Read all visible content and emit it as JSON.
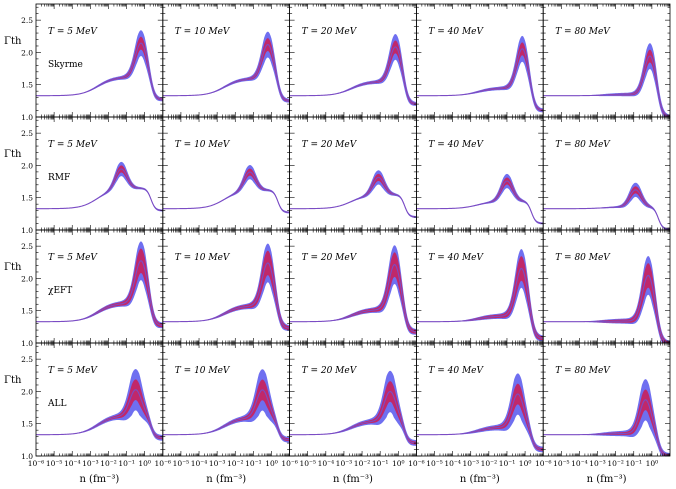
{
  "chart_data": {
    "type": "area",
    "layout": {
      "rows": 4,
      "cols": 5
    },
    "xlabel": "n (fm⁻³)",
    "ylabel": "Γth",
    "xscale": "log",
    "xlim_exp": [
      -6,
      1
    ],
    "x_tick_labels": [
      "10⁻⁶",
      "10⁻⁵",
      "10⁻⁴",
      "10⁻³",
      "10⁻²",
      "10⁻¹",
      "10⁰"
    ],
    "ylim": [
      1.0,
      2.75
    ],
    "y_ticks": [
      "1.0",
      "1.5",
      "2.0",
      "2.5"
    ],
    "temperatures": [
      "T = 5 MeV",
      "T = 10 MeV",
      "T = 20 MeV",
      "T = 40 MeV",
      "T = 80 MeV"
    ],
    "temperature_values_MeV": [
      5,
      10,
      20,
      40,
      80
    ],
    "models": [
      "Skyrme",
      "RMF",
      "χEFT",
      "ALL"
    ],
    "band_colors": {
      "outer": "#6f6ff0",
      "middle": "#c0286a",
      "median": "#7b4cc4"
    },
    "band_widths": {
      "Skyrme": [
        0.2,
        0.1
      ],
      "RMF": [
        0.11,
        0.055
      ],
      "χEFT": [
        0.3,
        0.19
      ],
      "ALL": [
        0.32,
        0.16
      ]
    },
    "series": [
      {
        "model": "Skyrme",
        "T": 5,
        "low_n": 1.33,
        "shoulder": 1.62,
        "peak": 2.12,
        "peak_log_n": -0.2
      },
      {
        "model": "Skyrme",
        "T": 10,
        "low_n": 1.33,
        "shoulder": 1.6,
        "peak": 2.1,
        "peak_log_n": -0.2
      },
      {
        "model": "Skyrme",
        "T": 20,
        "low_n": 1.33,
        "shoulder": 1.55,
        "peak": 2.07,
        "peak_log_n": -0.15
      },
      {
        "model": "Skyrme",
        "T": 40,
        "low_n": 1.33,
        "shoulder": 1.45,
        "peak": 2.05,
        "peak_log_n": -0.15
      },
      {
        "model": "Skyrme",
        "T": 80,
        "low_n": 1.33,
        "shoulder": 1.35,
        "peak": 1.95,
        "peak_log_n": -0.1
      },
      {
        "model": "RMF",
        "T": 5,
        "low_n": 1.33,
        "shoulder": 1.65,
        "peak": 1.93,
        "peak_log_n": -1.3
      },
      {
        "model": "RMF",
        "T": 10,
        "low_n": 1.33,
        "shoulder": 1.62,
        "peak": 1.88,
        "peak_log_n": -1.2
      },
      {
        "model": "RMF",
        "T": 20,
        "low_n": 1.33,
        "shoulder": 1.55,
        "peak": 1.8,
        "peak_log_n": -1.1
      },
      {
        "model": "RMF",
        "T": 40,
        "low_n": 1.33,
        "shoulder": 1.45,
        "peak": 1.75,
        "peak_log_n": -1.0
      },
      {
        "model": "RMF",
        "T": 80,
        "low_n": 1.33,
        "shoulder": 1.36,
        "peak": 1.62,
        "peak_log_n": -0.9
      },
      {
        "model": "χEFT",
        "T": 5,
        "low_n": 1.33,
        "shoulder": 1.62,
        "peak": 2.25,
        "peak_log_n": -0.2
      },
      {
        "model": "χEFT",
        "T": 10,
        "low_n": 1.33,
        "shoulder": 1.58,
        "peak": 2.22,
        "peak_log_n": -0.2
      },
      {
        "model": "χEFT",
        "T": 20,
        "low_n": 1.33,
        "shoulder": 1.52,
        "peak": 2.2,
        "peak_log_n": -0.2
      },
      {
        "model": "χEFT",
        "T": 40,
        "low_n": 1.33,
        "shoulder": 1.42,
        "peak": 2.15,
        "peak_log_n": -0.2
      },
      {
        "model": "χEFT",
        "T": 80,
        "low_n": 1.33,
        "shoulder": 1.34,
        "peak": 2.05,
        "peak_log_n": -0.2
      },
      {
        "model": "ALL",
        "T": 5,
        "low_n": 1.33,
        "shoulder": 1.63,
        "peak": 2.0,
        "peak_log_n": -0.5
      },
      {
        "model": "ALL",
        "T": 10,
        "low_n": 1.33,
        "shoulder": 1.6,
        "peak": 2.0,
        "peak_log_n": -0.5
      },
      {
        "model": "ALL",
        "T": 20,
        "low_n": 1.33,
        "shoulder": 1.55,
        "peak": 1.98,
        "peak_log_n": -0.45
      },
      {
        "model": "ALL",
        "T": 40,
        "low_n": 1.33,
        "shoulder": 1.45,
        "peak": 1.95,
        "peak_log_n": -0.4
      },
      {
        "model": "ALL",
        "T": 80,
        "low_n": 1.33,
        "shoulder": 1.35,
        "peak": 1.87,
        "peak_log_n": -0.35
      }
    ]
  }
}
